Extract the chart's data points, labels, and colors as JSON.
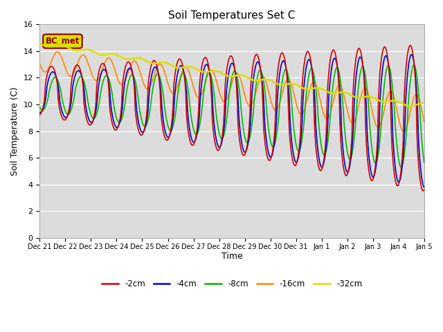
{
  "title": "Soil Temperatures Set C",
  "xlabel": "Time",
  "ylabel": "Soil Temperature (C)",
  "ylim": [
    0,
    16
  ],
  "yticks": [
    0,
    2,
    4,
    6,
    8,
    10,
    12,
    14,
    16
  ],
  "series_colors": {
    "-2cm": "#cc0000",
    "-4cm": "#0000cc",
    "-8cm": "#00bb00",
    "-16cm": "#ff8800",
    "-32cm": "#dddd00"
  },
  "legend_label": "BC_met",
  "xtick_labels": [
    "Dec 21",
    "Dec 22",
    "Dec 23",
    "Dec 24",
    "Dec 25",
    "Dec 26",
    "Dec 27",
    "Dec 28",
    "Dec 29",
    "Dec 30",
    "Dec 31",
    "Jan 1",
    "Jan 2",
    "Jan 3",
    "Jan 4",
    "Jan 5"
  ],
  "n_points": 480
}
